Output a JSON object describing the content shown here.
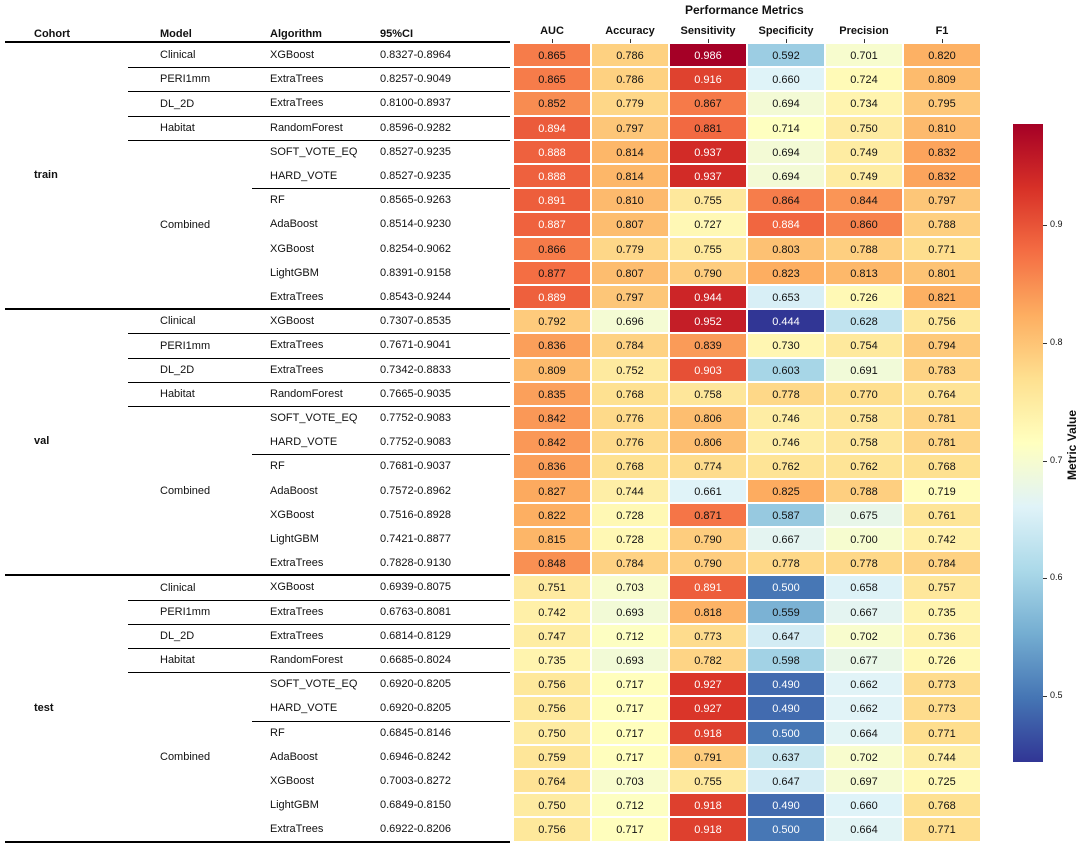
{
  "headers": {
    "cohort": "Cohort",
    "model": "Model",
    "algorithm": "Algorithm",
    "ci": "95%CI"
  },
  "chart_data": {
    "type": "heatmap",
    "title": "Performance Metrics",
    "metrics": [
      "AUC",
      "Accuracy",
      "Sensitivity",
      "Specificity",
      "Precision",
      "F1"
    ],
    "colorbar": {
      "label": "Metric Value",
      "colormap": "RdYlBu_r",
      "range": [
        0.444,
        0.986
      ],
      "ticks": [
        0.5,
        0.6,
        0.7,
        0.8,
        0.9
      ],
      "tick_labels": [
        "0.5",
        "0.6",
        "0.7",
        "0.8",
        "0.9"
      ]
    },
    "cohorts": [
      {
        "name": "train",
        "models": [
          {
            "name": "Clinical",
            "rows": [
              {
                "algorithm": "XGBoost",
                "ci": "0.8327-0.8964",
                "values": [
                  "0.865",
                  "0.786",
                  "0.986",
                  "0.592",
                  "0.701",
                  "0.820"
                ]
              }
            ]
          },
          {
            "name": "PERI1mm",
            "rows": [
              {
                "algorithm": "ExtraTrees",
                "ci": "0.8257-0.9049",
                "values": [
                  "0.865",
                  "0.786",
                  "0.916",
                  "0.660",
                  "0.724",
                  "0.809"
                ]
              }
            ]
          },
          {
            "name": "DL_2D",
            "rows": [
              {
                "algorithm": "ExtraTrees",
                "ci": "0.8100-0.8937",
                "values": [
                  "0.852",
                  "0.779",
                  "0.867",
                  "0.694",
                  "0.734",
                  "0.795"
                ]
              }
            ]
          },
          {
            "name": "Habitat",
            "rows": [
              {
                "algorithm": "RandomForest",
                "ci": "0.8596-0.9282",
                "values": [
                  "0.894",
                  "0.797",
                  "0.881",
                  "0.714",
                  "0.750",
                  "0.810"
                ]
              }
            ]
          },
          {
            "name": "Combined",
            "rows": [
              {
                "algorithm": "SOFT_VOTE_EQ",
                "ci": "0.8527-0.9235",
                "values": [
                  "0.888",
                  "0.814",
                  "0.937",
                  "0.694",
                  "0.749",
                  "0.832"
                ]
              },
              {
                "algorithm": "HARD_VOTE",
                "ci": "0.8527-0.9235",
                "values": [
                  "0.888",
                  "0.814",
                  "0.937",
                  "0.694",
                  "0.749",
                  "0.832"
                ]
              },
              {
                "algorithm": "RF",
                "ci": "0.8565-0.9263",
                "values": [
                  "0.891",
                  "0.810",
                  "0.755",
                  "0.864",
                  "0.844",
                  "0.797"
                ]
              },
              {
                "algorithm": "AdaBoost",
                "ci": "0.8514-0.9230",
                "values": [
                  "0.887",
                  "0.807",
                  "0.727",
                  "0.884",
                  "0.860",
                  "0.788"
                ]
              },
              {
                "algorithm": "XGBoost",
                "ci": "0.8254-0.9062",
                "values": [
                  "0.866",
                  "0.779",
                  "0.755",
                  "0.803",
                  "0.788",
                  "0.771"
                ]
              },
              {
                "algorithm": "LightGBM",
                "ci": "0.8391-0.9158",
                "values": [
                  "0.877",
                  "0.807",
                  "0.790",
                  "0.823",
                  "0.813",
                  "0.801"
                ]
              },
              {
                "algorithm": "ExtraTrees",
                "ci": "0.8543-0.9244",
                "values": [
                  "0.889",
                  "0.797",
                  "0.944",
                  "0.653",
                  "0.726",
                  "0.821"
                ]
              }
            ]
          }
        ]
      },
      {
        "name": "val",
        "models": [
          {
            "name": "Clinical",
            "rows": [
              {
                "algorithm": "XGBoost",
                "ci": "0.7307-0.8535",
                "values": [
                  "0.792",
                  "0.696",
                  "0.952",
                  "0.444",
                  "0.628",
                  "0.756"
                ]
              }
            ]
          },
          {
            "name": "PERI1mm",
            "rows": [
              {
                "algorithm": "ExtraTrees",
                "ci": "0.7671-0.9041",
                "values": [
                  "0.836",
                  "0.784",
                  "0.839",
                  "0.730",
                  "0.754",
                  "0.794"
                ]
              }
            ]
          },
          {
            "name": "DL_2D",
            "rows": [
              {
                "algorithm": "ExtraTrees",
                "ci": "0.7342-0.8833",
                "values": [
                  "0.809",
                  "0.752",
                  "0.903",
                  "0.603",
                  "0.691",
                  "0.783"
                ]
              }
            ]
          },
          {
            "name": "Habitat",
            "rows": [
              {
                "algorithm": "RandomForest",
                "ci": "0.7665-0.9035",
                "values": [
                  "0.835",
                  "0.768",
                  "0.758",
                  "0.778",
                  "0.770",
                  "0.764"
                ]
              }
            ]
          },
          {
            "name": "Combined",
            "rows": [
              {
                "algorithm": "SOFT_VOTE_EQ",
                "ci": "0.7752-0.9083",
                "values": [
                  "0.842",
                  "0.776",
                  "0.806",
                  "0.746",
                  "0.758",
                  "0.781"
                ]
              },
              {
                "algorithm": "HARD_VOTE",
                "ci": "0.7752-0.9083",
                "values": [
                  "0.842",
                  "0.776",
                  "0.806",
                  "0.746",
                  "0.758",
                  "0.781"
                ]
              },
              {
                "algorithm": "RF",
                "ci": "0.7681-0.9037",
                "values": [
                  "0.836",
                  "0.768",
                  "0.774",
                  "0.762",
                  "0.762",
                  "0.768"
                ]
              },
              {
                "algorithm": "AdaBoost",
                "ci": "0.7572-0.8962",
                "values": [
                  "0.827",
                  "0.744",
                  "0.661",
                  "0.825",
                  "0.788",
                  "0.719"
                ]
              },
              {
                "algorithm": "XGBoost",
                "ci": "0.7516-0.8928",
                "values": [
                  "0.822",
                  "0.728",
                  "0.871",
                  "0.587",
                  "0.675",
                  "0.761"
                ]
              },
              {
                "algorithm": "LightGBM",
                "ci": "0.7421-0.8877",
                "values": [
                  "0.815",
                  "0.728",
                  "0.790",
                  "0.667",
                  "0.700",
                  "0.742"
                ]
              },
              {
                "algorithm": "ExtraTrees",
                "ci": "0.7828-0.9130",
                "values": [
                  "0.848",
                  "0.784",
                  "0.790",
                  "0.778",
                  "0.778",
                  "0.784"
                ]
              }
            ]
          }
        ]
      },
      {
        "name": "test",
        "models": [
          {
            "name": "Clinical",
            "rows": [
              {
                "algorithm": "XGBoost",
                "ci": "0.6939-0.8075",
                "values": [
                  "0.751",
                  "0.703",
                  "0.891",
                  "0.500",
                  "0.658",
                  "0.757"
                ]
              }
            ]
          },
          {
            "name": "PERI1mm",
            "rows": [
              {
                "algorithm": "ExtraTrees",
                "ci": "0.6763-0.8081",
                "values": [
                  "0.742",
                  "0.693",
                  "0.818",
                  "0.559",
                  "0.667",
                  "0.735"
                ]
              }
            ]
          },
          {
            "name": "DL_2D",
            "rows": [
              {
                "algorithm": "ExtraTrees",
                "ci": "0.6814-0.8129",
                "values": [
                  "0.747",
                  "0.712",
                  "0.773",
                  "0.647",
                  "0.702",
                  "0.736"
                ]
              }
            ]
          },
          {
            "name": "Habitat",
            "rows": [
              {
                "algorithm": "RandomForest",
                "ci": "0.6685-0.8024",
                "values": [
                  "0.735",
                  "0.693",
                  "0.782",
                  "0.598",
                  "0.677",
                  "0.726"
                ]
              }
            ]
          },
          {
            "name": "Combined",
            "rows": [
              {
                "algorithm": "SOFT_VOTE_EQ",
                "ci": "0.6920-0.8205",
                "values": [
                  "0.756",
                  "0.717",
                  "0.927",
                  "0.490",
                  "0.662",
                  "0.773"
                ]
              },
              {
                "algorithm": "HARD_VOTE",
                "ci": "0.6920-0.8205",
                "values": [
                  "0.756",
                  "0.717",
                  "0.927",
                  "0.490",
                  "0.662",
                  "0.773"
                ]
              },
              {
                "algorithm": "RF",
                "ci": "0.6845-0.8146",
                "values": [
                  "0.750",
                  "0.717",
                  "0.918",
                  "0.500",
                  "0.664",
                  "0.771"
                ]
              },
              {
                "algorithm": "AdaBoost",
                "ci": "0.6946-0.8242",
                "values": [
                  "0.759",
                  "0.717",
                  "0.791",
                  "0.637",
                  "0.702",
                  "0.744"
                ]
              },
              {
                "algorithm": "XGBoost",
                "ci": "0.7003-0.8272",
                "values": [
                  "0.764",
                  "0.703",
                  "0.755",
                  "0.647",
                  "0.697",
                  "0.725"
                ]
              },
              {
                "algorithm": "LightGBM",
                "ci": "0.6849-0.8150",
                "values": [
                  "0.750",
                  "0.712",
                  "0.918",
                  "0.490",
                  "0.660",
                  "0.768"
                ]
              },
              {
                "algorithm": "ExtraTrees",
                "ci": "0.6922-0.8206",
                "values": [
                  "0.756",
                  "0.717",
                  "0.918",
                  "0.500",
                  "0.664",
                  "0.771"
                ]
              }
            ]
          }
        ]
      }
    ]
  }
}
